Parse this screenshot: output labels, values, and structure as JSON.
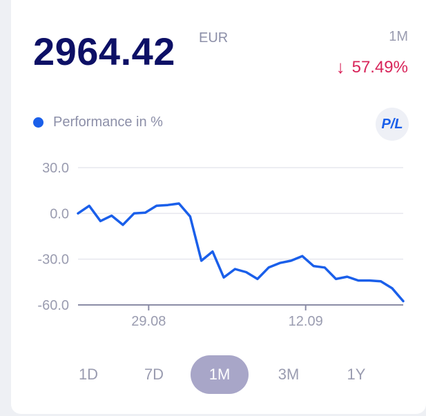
{
  "header": {
    "value": "2964.42",
    "currency": "EUR",
    "period": "1M",
    "change_arrow": "↓",
    "change_percent": "57.49%"
  },
  "legend": {
    "label": "Performance in %",
    "color": "#1a5fea"
  },
  "pl_button": {
    "label": "P/L"
  },
  "tabs": [
    {
      "label": "1D",
      "active": false
    },
    {
      "label": "7D",
      "active": false
    },
    {
      "label": "1M",
      "active": true
    },
    {
      "label": "3M",
      "active": false
    },
    {
      "label": "1Y",
      "active": false
    }
  ],
  "chart_data": {
    "type": "line",
    "ylim": [
      -60,
      30
    ],
    "yticks": [
      30,
      0,
      -30,
      -60
    ],
    "ytick_labels": [
      "30.0",
      "0.0",
      "-30.0",
      "-60.0"
    ],
    "xlabels": [
      {
        "label": "29.08",
        "day": 6.3
      },
      {
        "label": "12.09",
        "day": 20.3
      }
    ],
    "xrange": [
      0,
      29
    ],
    "grid": true,
    "series": [
      {
        "color": "#1a5fea",
        "x": [
          0,
          1,
          2,
          3,
          4,
          5,
          6,
          7,
          8,
          9,
          10,
          11,
          12,
          13,
          14,
          15,
          16,
          17,
          18,
          19,
          20,
          21,
          22,
          23,
          24,
          25,
          26,
          27,
          28,
          29
        ],
        "y": [
          0,
          5,
          -5,
          -1.5,
          -7.5,
          0,
          0.5,
          5,
          5.5,
          6.5,
          -2,
          -31,
          -25,
          -42,
          -36.5,
          -38.5,
          -43,
          -35.5,
          -32.5,
          -31,
          -28,
          -34.5,
          -35.5,
          -43,
          -41.5,
          -44,
          -44,
          -44.5,
          -49,
          -57.5
        ]
      }
    ]
  }
}
